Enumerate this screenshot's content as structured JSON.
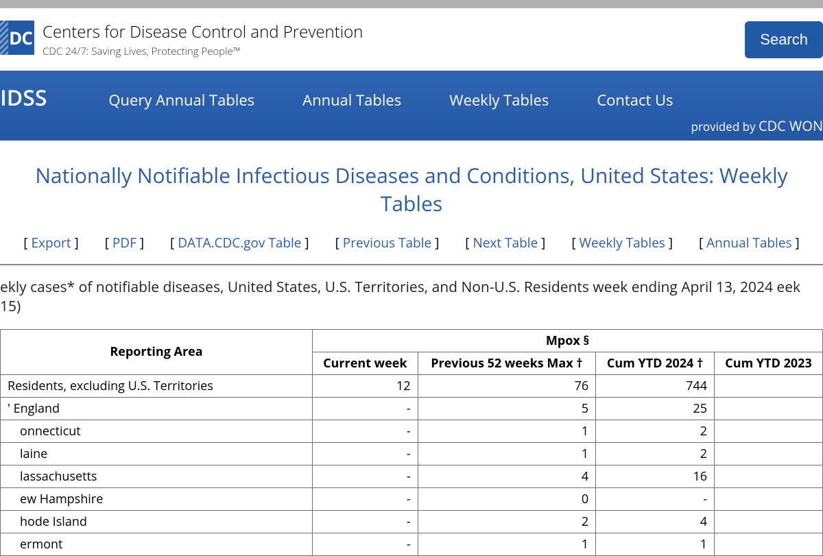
{
  "header": {
    "logo_text": "DC",
    "title": "Centers for Disease Control and Prevention",
    "subtitle": "CDC 24/7: Saving Lives, Protecting People™",
    "search_label": "Search"
  },
  "nav": {
    "brand": "IDSS",
    "items": [
      "Query Annual Tables",
      "Annual Tables",
      "Weekly Tables",
      "Contact Us"
    ],
    "provided_prefix": "provided by",
    "provided_by": "CDC WON"
  },
  "page": {
    "title": "Nationally Notifiable Infectious Diseases and Conditions, United States: Weekly Tables",
    "caption": "ekly cases* of notifiable diseases, United States, U.S. Territories, and Non-U.S. Residents week ending April 13, 2024 eek 15)"
  },
  "actions": {
    "items": [
      "Export",
      "PDF",
      "DATA.CDC.gov Table",
      "Previous Table",
      "Next Table",
      "Weekly Tables",
      "Annual Tables"
    ]
  },
  "table": {
    "group_header": "Mpox §",
    "reporting_area_header": "Reporting Area",
    "columns": [
      "Current week",
      "Previous 52 weeks Max †",
      "Cum YTD 2024 †",
      "Cum YTD 2023"
    ],
    "rows": [
      {
        "area": "Residents, excluding U.S. Territories",
        "indent": 0,
        "cells": [
          "12",
          "76",
          "744",
          ""
        ]
      },
      {
        "area": "' England",
        "indent": 1,
        "cells": [
          "-",
          "5",
          "25",
          ""
        ]
      },
      {
        "area": "onnecticut",
        "indent": 2,
        "cells": [
          "-",
          "1",
          "2",
          ""
        ]
      },
      {
        "area": "laine",
        "indent": 2,
        "cells": [
          "-",
          "1",
          "2",
          ""
        ]
      },
      {
        "area": "lassachusetts",
        "indent": 2,
        "cells": [
          "-",
          "4",
          "16",
          ""
        ]
      },
      {
        "area": "ew Hampshire",
        "indent": 2,
        "cells": [
          "-",
          "0",
          "-",
          ""
        ]
      },
      {
        "area": "hode Island",
        "indent": 2,
        "cells": [
          "-",
          "2",
          "4",
          ""
        ]
      },
      {
        "area": "ermont",
        "indent": 2,
        "cells": [
          "-",
          "1",
          "1",
          ""
        ]
      }
    ]
  }
}
